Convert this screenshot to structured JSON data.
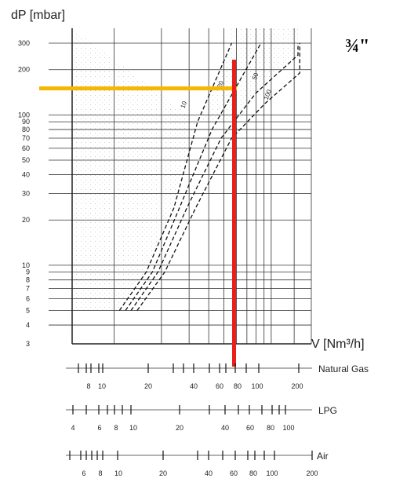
{
  "chart_data": {
    "type": "line",
    "title": "",
    "size_label": "¾\"",
    "ylabel": "dP [mbar]",
    "xlabel": "V [Nm³/h]",
    "y_scale": "log",
    "x_scale": "log",
    "ylim": [
      3,
      300
    ],
    "xlim": [
      5.4,
      180
    ],
    "y_ticks": [
      "300",
      "200",
      "100",
      "90",
      "80",
      "70",
      "60",
      "50",
      "40",
      "30",
      "20",
      "10",
      "9",
      "8",
      "7",
      "6",
      "5",
      "4",
      "3"
    ],
    "y_tick_values": [
      300,
      200,
      100,
      90,
      80,
      70,
      60,
      50,
      40,
      30,
      20,
      10,
      9,
      8,
      7,
      6,
      5,
      4,
      3
    ],
    "x_gridlines": [
      5.4,
      10,
      20,
      30,
      40,
      50,
      60,
      70,
      80,
      90,
      100,
      140,
      180
    ],
    "series": [
      {
        "name": "10",
        "points": [
          [
            10.8,
            5
          ],
          [
            16,
            9
          ],
          [
            24,
            24
          ],
          [
            34,
            90
          ],
          [
            56,
            320
          ]
        ]
      },
      {
        "name": "20",
        "points": [
          [
            11.8,
            5
          ],
          [
            17.5,
            9
          ],
          [
            26,
            24
          ],
          [
            42,
            80
          ],
          [
            86,
            320
          ]
        ]
      },
      {
        "name": "50",
        "points": [
          [
            12.8,
            5
          ],
          [
            19,
            9
          ],
          [
            29,
            24
          ],
          [
            48,
            70
          ],
          [
            80,
            140
          ],
          [
            148,
            250
          ],
          [
            148,
            320
          ]
        ]
      },
      {
        "name": "100",
        "points": [
          [
            14,
            5
          ],
          [
            21,
            9
          ],
          [
            33,
            24
          ],
          [
            56,
            70
          ],
          [
            92,
            120
          ],
          [
            152,
            190
          ],
          [
            152,
            320
          ]
        ]
      }
    ],
    "highlight": {
      "horizontal_dp": 150,
      "horizontal_color": "#f5b800",
      "vertical_flow": 58,
      "vertical_color": "#e8201a"
    },
    "scales": [
      {
        "name": "Natural Gas",
        "labels": [
          "8",
          "10",
          "20",
          "40",
          "60",
          "80",
          "100",
          "200"
        ]
      },
      {
        "name": "LPG",
        "labels": [
          "4",
          "6",
          "8",
          "10",
          "20",
          "40",
          "60",
          "80",
          "100"
        ]
      },
      {
        "name": "Air",
        "labels": [
          "6",
          "8",
          "10",
          "20",
          "40",
          "60",
          "80",
          "100",
          "200"
        ]
      }
    ]
  }
}
